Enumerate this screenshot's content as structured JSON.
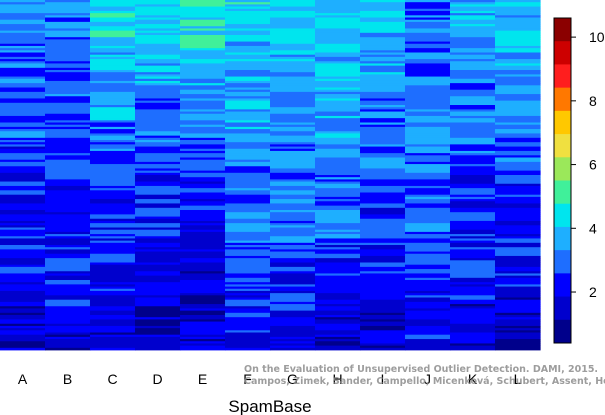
{
  "chart_data": {
    "type": "heatmap",
    "title": "",
    "xlabel": "SpamBase",
    "ylabel": "",
    "categories": [
      "A",
      "B",
      "C",
      "D",
      "E",
      "F",
      "G",
      "H",
      "I",
      "J",
      "K",
      "L"
    ],
    "colorbar": {
      "range": [
        0.4,
        10.6
      ],
      "ticks": [
        "2",
        "4",
        "6",
        "8",
        "10"
      ],
      "tick_values": [
        2,
        4,
        6,
        8,
        10
      ],
      "colors": [
        "#00008B",
        "#0000CD",
        "#0000FF",
        "#1E6EFF",
        "#1EAFFF",
        "#00E5EE",
        "#40F09A",
        "#9BE85A",
        "#F0E040",
        "#FFC800",
        "#FF7800",
        "#FF1E1E",
        "#CD0000",
        "#8B0000"
      ]
    },
    "grid": false,
    "legend": "right (colorbar)",
    "row_count": 160,
    "column_profiles": [
      {
        "column": "A",
        "top_score": 3.2,
        "middle_score": 2.3,
        "bottom_score": 1.5
      },
      {
        "column": "B",
        "top_score": 3.0,
        "middle_score": 2.4,
        "bottom_score": 1.6
      },
      {
        "column": "C",
        "top_score": 4.6,
        "middle_score": 2.6,
        "bottom_score": 1.6
      },
      {
        "column": "D",
        "top_score": 4.4,
        "middle_score": 2.3,
        "bottom_score": 1.4
      },
      {
        "column": "E",
        "top_score": 5.0,
        "middle_score": 2.3,
        "bottom_score": 1.3
      },
      {
        "column": "F",
        "top_score": 4.2,
        "middle_score": 3.2,
        "bottom_score": 2.0
      },
      {
        "column": "G",
        "top_score": 4.0,
        "middle_score": 3.0,
        "bottom_score": 1.8
      },
      {
        "column": "H",
        "top_score": 4.2,
        "middle_score": 3.2,
        "bottom_score": 1.3
      },
      {
        "column": "I",
        "top_score": 4.0,
        "middle_score": 2.6,
        "bottom_score": 1.6
      },
      {
        "column": "J",
        "top_score": 3.0,
        "middle_score": 3.2,
        "bottom_score": 2.0
      },
      {
        "column": "K",
        "top_score": 3.6,
        "middle_score": 2.6,
        "bottom_score": 1.6
      },
      {
        "column": "L",
        "top_score": 4.0,
        "middle_score": 2.6,
        "bottom_score": 1.5
      }
    ]
  },
  "credit": {
    "line1": "On the Evaluation of Unsupervised Outlier Detection. DAMI, 2015.",
    "line2": "Campos, Zimek, Sander, Campello, Micenková, Schubert, Assent, Houle"
  }
}
